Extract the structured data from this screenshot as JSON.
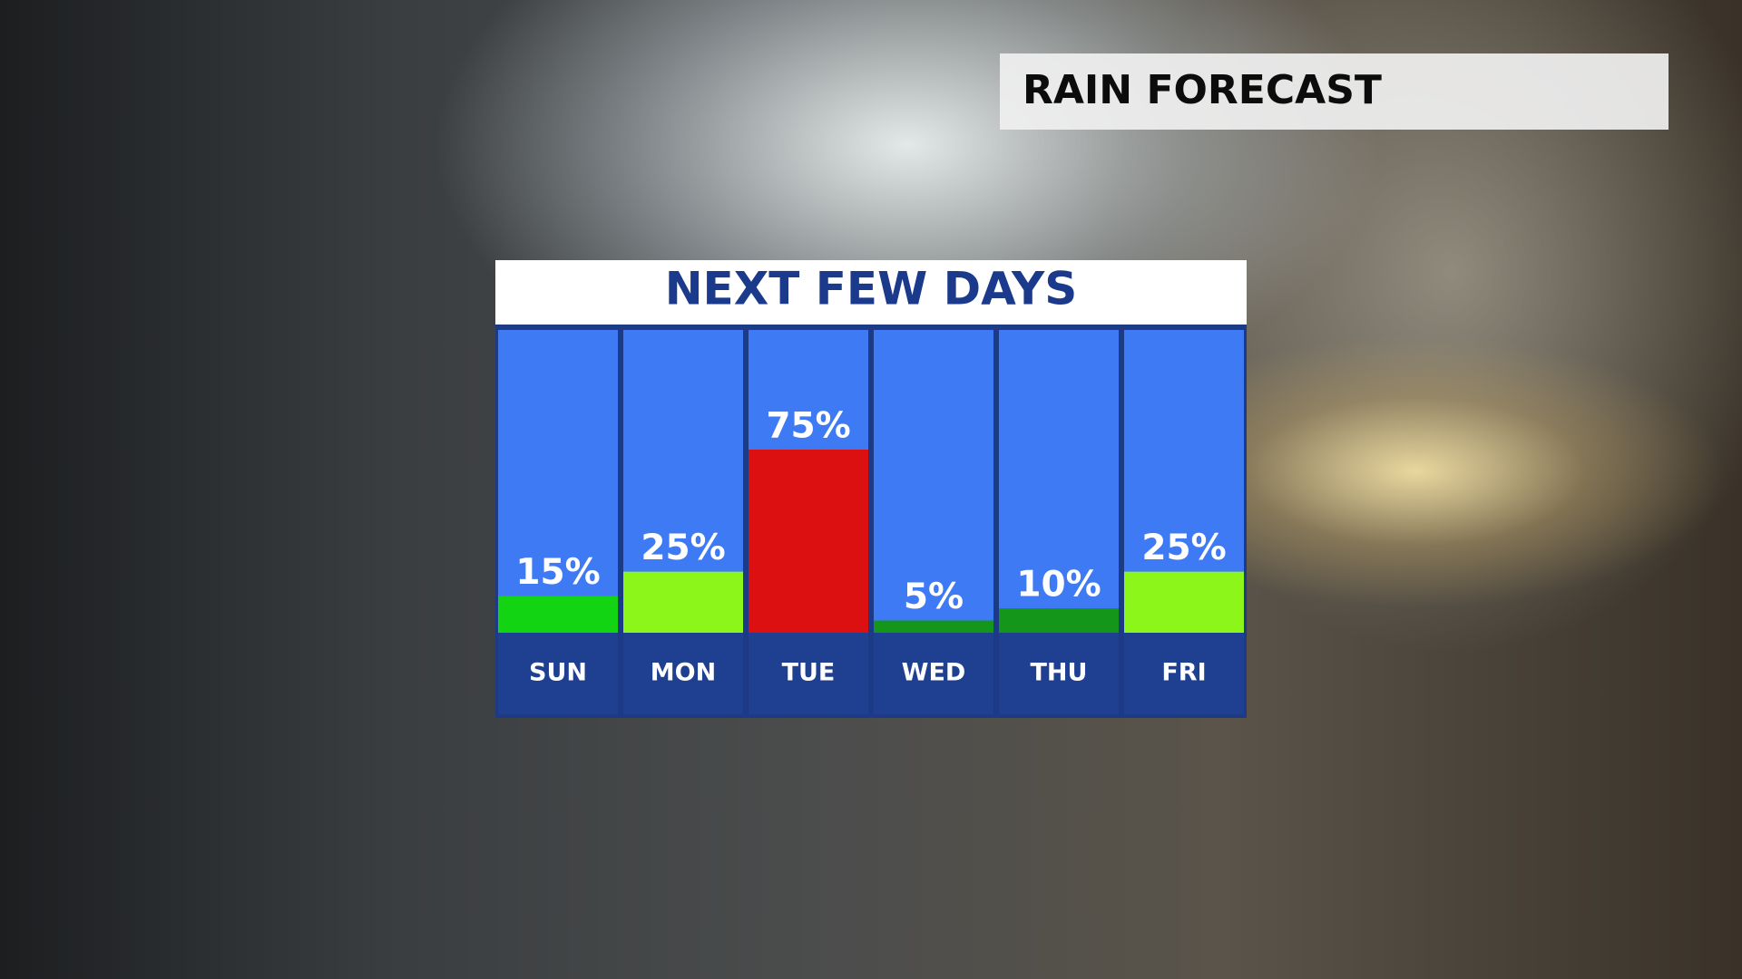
{
  "header": {
    "title": "RAIN FORECAST"
  },
  "chart_data": {
    "type": "bar",
    "title": "NEXT FEW DAYS",
    "categories": [
      "SUN",
      "MON",
      "TUE",
      "WED",
      "THU",
      "FRI"
    ],
    "values": [
      15,
      25,
      75,
      5,
      10,
      25
    ],
    "value_labels": [
      "15%",
      "25%",
      "75%",
      "5%",
      "10%",
      "25%"
    ],
    "colors": [
      "#12d412",
      "#8cf51a",
      "#dc1010",
      "#14961a",
      "#14961a",
      "#8cf51a"
    ]
  }
}
